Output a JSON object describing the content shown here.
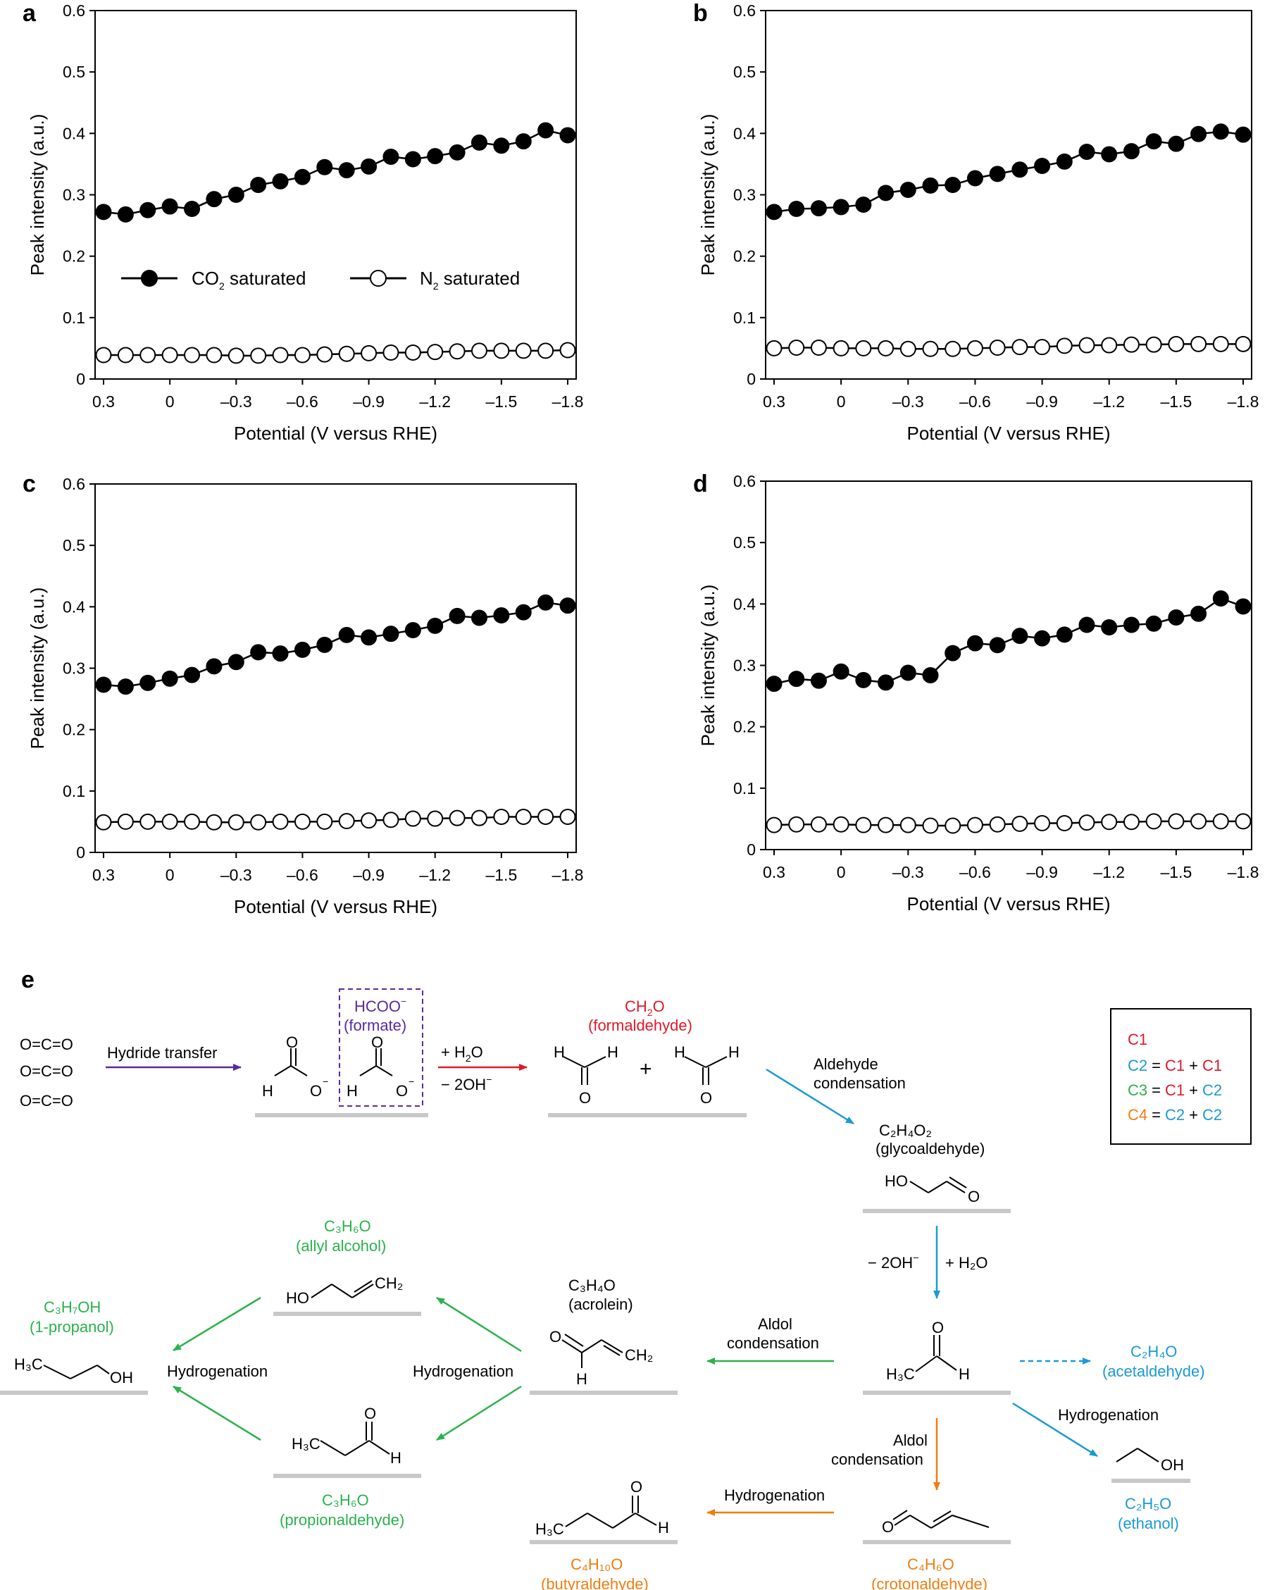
{
  "colors": {
    "red": "#e0192a",
    "blue": "#1a9ad6",
    "green": "#2bb24c",
    "orange": "#f07d10",
    "purple": "#5b2aa0",
    "gray": "#c8c8c8"
  },
  "chart_data": [
    {
      "panel": "a",
      "type": "line",
      "title": "",
      "xlabel": "Potential (V versus RHE)",
      "ylabel": "Peak intensity (a.u.)",
      "xlim": [
        0.3,
        -1.8
      ],
      "ylim": [
        0,
        0.6
      ],
      "xticks": [
        "0.3",
        "0",
        "–0.3",
        "–0.6",
        "–0.9",
        "–1.2",
        "–1.5",
        "–1.8"
      ],
      "yticks": [
        "0",
        "0.1",
        "0.2",
        "0.3",
        "0.4",
        "0.5",
        "0.6"
      ],
      "legend": "inside, middle-left",
      "x": [
        0.3,
        0.2,
        0.1,
        0,
        -0.1,
        -0.2,
        -0.3,
        -0.4,
        -0.5,
        -0.6,
        -0.7,
        -0.8,
        -0.9,
        -1.0,
        -1.1,
        -1.2,
        -1.3,
        -1.4,
        -1.5,
        -1.6,
        -1.7,
        -1.8
      ],
      "series": [
        {
          "name": "CO2 saturated",
          "marker": "filled",
          "values": [
            0.272,
            0.268,
            0.275,
            0.281,
            0.277,
            0.293,
            0.3,
            0.316,
            0.322,
            0.329,
            0.345,
            0.34,
            0.346,
            0.362,
            0.358,
            0.363,
            0.369,
            0.385,
            0.38,
            0.387,
            0.405,
            0.397
          ]
        },
        {
          "name": "N2 saturated",
          "marker": "open",
          "values": [
            0.039,
            0.039,
            0.039,
            0.039,
            0.039,
            0.039,
            0.038,
            0.038,
            0.039,
            0.039,
            0.04,
            0.041,
            0.042,
            0.043,
            0.043,
            0.044,
            0.045,
            0.046,
            0.046,
            0.046,
            0.046,
            0.047
          ]
        }
      ]
    },
    {
      "panel": "b",
      "type": "line",
      "xlabel": "Potential (V versus RHE)",
      "ylabel": "Peak intensity (a.u.)",
      "xlim": [
        0.3,
        -1.8
      ],
      "ylim": [
        0,
        0.6
      ],
      "xticks": [
        "0.3",
        "0",
        "–0.3",
        "–0.6",
        "–0.9",
        "–1.2",
        "–1.5",
        "–1.8"
      ],
      "yticks": [
        "0",
        "0.1",
        "0.2",
        "0.3",
        "0.4",
        "0.5",
        "0.6"
      ],
      "x": [
        0.3,
        0.2,
        0.1,
        0,
        -0.1,
        -0.2,
        -0.3,
        -0.4,
        -0.5,
        -0.6,
        -0.7,
        -0.8,
        -0.9,
        -1.0,
        -1.1,
        -1.2,
        -1.3,
        -1.4,
        -1.5,
        -1.6,
        -1.7,
        -1.8
      ],
      "series": [
        {
          "name": "CO2 saturated",
          "marker": "filled",
          "values": [
            0.272,
            0.277,
            0.278,
            0.28,
            0.284,
            0.303,
            0.308,
            0.315,
            0.316,
            0.327,
            0.334,
            0.341,
            0.347,
            0.354,
            0.37,
            0.366,
            0.371,
            0.387,
            0.383,
            0.399,
            0.403,
            0.398
          ]
        },
        {
          "name": "N2 saturated",
          "marker": "open",
          "values": [
            0.05,
            0.051,
            0.051,
            0.05,
            0.05,
            0.05,
            0.049,
            0.049,
            0.049,
            0.05,
            0.051,
            0.052,
            0.052,
            0.054,
            0.055,
            0.055,
            0.056,
            0.056,
            0.057,
            0.057,
            0.057,
            0.057
          ]
        }
      ]
    },
    {
      "panel": "c",
      "type": "line",
      "xlabel": "Potential (V versus RHE)",
      "ylabel": "Peak intensity (a.u.)",
      "xlim": [
        0.3,
        -1.8
      ],
      "ylim": [
        0,
        0.6
      ],
      "xticks": [
        "0.3",
        "0",
        "–0.3",
        "–0.6",
        "–0.9",
        "–1.2",
        "–1.5",
        "–1.8"
      ],
      "yticks": [
        "0",
        "0.1",
        "0.2",
        "0.3",
        "0.4",
        "0.5",
        "0.6"
      ],
      "x": [
        0.3,
        0.2,
        0.1,
        0,
        -0.1,
        -0.2,
        -0.3,
        -0.4,
        -0.5,
        -0.6,
        -0.7,
        -0.8,
        -0.9,
        -1.0,
        -1.1,
        -1.2,
        -1.3,
        -1.4,
        -1.5,
        -1.6,
        -1.7,
        -1.8
      ],
      "series": [
        {
          "name": "CO2 saturated",
          "marker": "filled",
          "values": [
            0.273,
            0.27,
            0.276,
            0.283,
            0.289,
            0.303,
            0.31,
            0.326,
            0.324,
            0.33,
            0.338,
            0.354,
            0.35,
            0.356,
            0.362,
            0.369,
            0.385,
            0.382,
            0.386,
            0.391,
            0.407,
            0.402
          ]
        },
        {
          "name": "N2 saturated",
          "marker": "open",
          "values": [
            0.049,
            0.05,
            0.05,
            0.05,
            0.05,
            0.049,
            0.049,
            0.049,
            0.05,
            0.05,
            0.05,
            0.051,
            0.052,
            0.053,
            0.055,
            0.055,
            0.056,
            0.056,
            0.058,
            0.058,
            0.058,
            0.058
          ]
        }
      ]
    },
    {
      "panel": "d",
      "type": "line",
      "xlabel": "Potential (V versus RHE)",
      "ylabel": "Peak intensity (a.u.)",
      "xlim": [
        0.3,
        -1.8
      ],
      "ylim": [
        0,
        0.6
      ],
      "xticks": [
        "0.3",
        "0",
        "–0.3",
        "–0.6",
        "–0.9",
        "–1.2",
        "–1.5",
        "–1.8"
      ],
      "yticks": [
        "0",
        "0.1",
        "0.2",
        "0.3",
        "0.4",
        "0.5",
        "0.6"
      ],
      "x": [
        0.3,
        0.2,
        0.1,
        0,
        -0.1,
        -0.2,
        -0.3,
        -0.4,
        -0.5,
        -0.6,
        -0.7,
        -0.8,
        -0.9,
        -1.0,
        -1.1,
        -1.2,
        -1.3,
        -1.4,
        -1.5,
        -1.6,
        -1.7,
        -1.8
      ],
      "series": [
        {
          "name": "CO2 saturated",
          "marker": "filled",
          "values": [
            0.27,
            0.278,
            0.275,
            0.29,
            0.276,
            0.272,
            0.288,
            0.284,
            0.32,
            0.336,
            0.333,
            0.348,
            0.344,
            0.35,
            0.366,
            0.362,
            0.366,
            0.368,
            0.378,
            0.384,
            0.409,
            0.396
          ]
        },
        {
          "name": "N2 saturated",
          "marker": "open",
          "values": [
            0.04,
            0.041,
            0.041,
            0.041,
            0.04,
            0.04,
            0.04,
            0.039,
            0.039,
            0.04,
            0.041,
            0.042,
            0.043,
            0.043,
            0.044,
            0.045,
            0.045,
            0.046,
            0.046,
            0.046,
            0.046,
            0.046
          ]
        }
      ]
    }
  ],
  "legend": {
    "co2": {
      "pre": "CO",
      "sub": "2",
      "post": " saturated"
    },
    "n2": {
      "pre": "N",
      "sub": "2",
      "post": " saturated"
    }
  },
  "scheme": {
    "panel_label": "e",
    "co2_molecule": "O=C=O",
    "hydride_transfer": "Hydride transfer",
    "formate": {
      "formula": "HCOO",
      "charge": "−",
      "name": "(formate)"
    },
    "formate_atoms": {
      "h": "H",
      "o": "O",
      "minus": "−"
    },
    "step1": {
      "plus_h2o": "+ H",
      "h2o_sub": "2",
      "h2o_o": "O",
      "minus_2oh": "− 2OH",
      "charge": "−"
    },
    "formaldehyde": {
      "formula_c": "CH",
      "sub": "2",
      "formula_o": "O",
      "name": "(formaldehyde)"
    },
    "plus": "+",
    "atom_h": "H",
    "atom_o": "O",
    "aldehyde_condensation": [
      "Aldehyde",
      "condensation"
    ],
    "glycoaldehyde": {
      "formula": "C₂H₄O₂",
      "name": "(glycoaldehyde)",
      "ho": "HO"
    },
    "step2": {
      "minus_2oh": "− 2OH",
      "charge": "−",
      "plus_h2o": "+ H₂O"
    },
    "acetaldehyde_struct": {
      "h3c": "H₃C",
      "h": "H"
    },
    "acetaldehyde": {
      "formula": "C₂H₄O",
      "name": "(acetaldehyde)"
    },
    "aldol_condensation": [
      "Aldol",
      "condensation"
    ],
    "acrolein": {
      "formula": "C₃H₄O",
      "name": "(acrolein)",
      "ch2": "CH₂"
    },
    "hydrogenation": "Hydrogenation",
    "allyl_alcohol": {
      "formula": "C₃H₆O",
      "name": "(allyl alcohol)",
      "ho": "HO",
      "ch2": "CH₂"
    },
    "propionaldehyde": {
      "formula": "C₃H₆O",
      "name": "(propionaldehyde)",
      "h3c": "H₃C"
    },
    "propanol": {
      "formula": "C₃H₇OH",
      "name": "(1-propanol)",
      "h3c": "H₃C",
      "oh": "OH"
    },
    "ethanol": {
      "formula": "C₂H₅O",
      "name": "(ethanol)",
      "oh": "OH"
    },
    "crotonaldehyde": {
      "formula": "C₄H₆O",
      "name": "(crotonaldehyde)"
    },
    "butyraldehyde": {
      "formula": "C₄H₁₀O",
      "name": "(butyraldehyde)",
      "h3c": "H₃C"
    },
    "key": {
      "c1": "C1",
      "c2": "C2",
      "c3": "C3",
      "c4": "C4",
      "eq": "=",
      "plus": "+"
    }
  }
}
